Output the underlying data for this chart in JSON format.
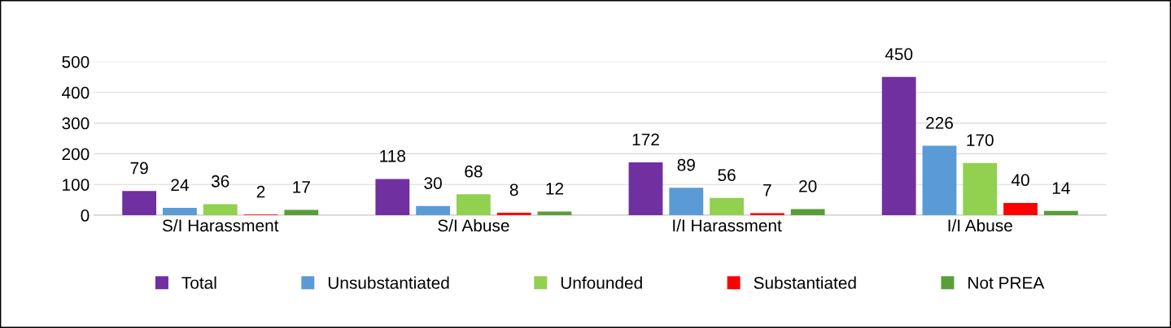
{
  "chart_data": {
    "type": "bar",
    "categories": [
      "S/I Harassment",
      "S/I Abuse",
      "I/I Harassment",
      "I/I Abuse"
    ],
    "series": [
      {
        "name": "Total",
        "color": "#7030a0",
        "values": [
          79,
          118,
          172,
          450
        ]
      },
      {
        "name": "Unsubstantiated",
        "color": "#5b9bd5",
        "values": [
          24,
          30,
          89,
          226
        ]
      },
      {
        "name": "Unfounded",
        "color": "#92d050",
        "values": [
          36,
          68,
          56,
          170
        ]
      },
      {
        "name": "Substantiated",
        "color": "#ff0000",
        "values": [
          2,
          8,
          7,
          40
        ]
      },
      {
        "name": "Not PREA",
        "color": "#5a9e3a",
        "values": [
          17,
          12,
          20,
          14
        ]
      }
    ],
    "ylim": [
      0,
      500
    ],
    "yticks": [
      0,
      100,
      200,
      300,
      400,
      500
    ],
    "grid": "y",
    "legend": "bottom",
    "data_labels": true
  }
}
